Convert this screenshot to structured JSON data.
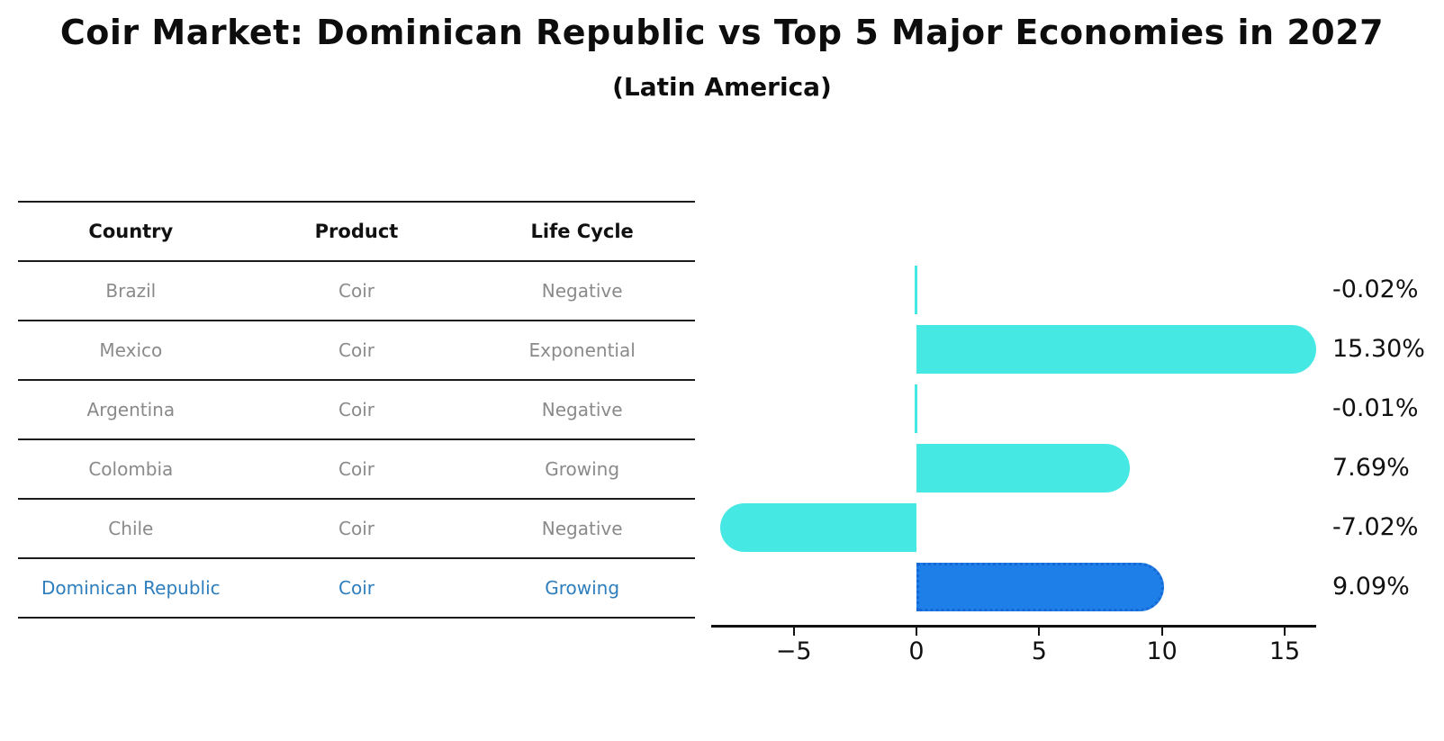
{
  "title": "Coir Market: Dominican Republic vs Top 5 Major Economies in 2027",
  "subtitle": "(Latin America)",
  "table": {
    "headers": [
      "Country",
      "Product",
      "Life Cycle"
    ],
    "rows": [
      {
        "country": "Brazil",
        "product": "Coir",
        "life_cycle": "Negative",
        "highlight": false
      },
      {
        "country": "Mexico",
        "product": "Coir",
        "life_cycle": "Exponential",
        "highlight": false
      },
      {
        "country": "Argentina",
        "product": "Coir",
        "life_cycle": "Negative",
        "highlight": false
      },
      {
        "country": "Colombia",
        "product": "Coir",
        "life_cycle": "Growing",
        "highlight": false
      },
      {
        "country": "Chile",
        "product": "Coir",
        "life_cycle": "Negative",
        "highlight": false
      },
      {
        "country": "Dominican Republic",
        "product": "Coir",
        "life_cycle": "Growing",
        "highlight": true
      }
    ]
  },
  "chart_data": {
    "type": "bar",
    "orientation": "horizontal",
    "categories": [
      "Brazil",
      "Mexico",
      "Argentina",
      "Colombia",
      "Chile",
      "Dominican Republic"
    ],
    "values": [
      -0.02,
      15.3,
      -0.01,
      7.69,
      -7.02,
      9.09
    ],
    "value_labels": [
      "-0.02%",
      "15.30%",
      "-0.01%",
      "7.69%",
      "-7.02%",
      "9.09%"
    ],
    "highlight_index": 5,
    "xticks": [
      -5,
      0,
      5,
      10,
      15
    ],
    "xtick_labels": [
      "−5",
      "0",
      "5",
      "10",
      "15"
    ],
    "xlim": [
      -8.4,
      16.3
    ],
    "grid": false,
    "legend_position": "none",
    "colors": {
      "bar_default": "#46E8E4",
      "bar_highlight": "#1E7FE8",
      "bar_highlight_border": "#1668D6",
      "highlight_row_text": "#2E7EBD",
      "table_cell_text": "#8A8A8A",
      "table_header_text": "#111111",
      "axis": "#111111"
    }
  }
}
